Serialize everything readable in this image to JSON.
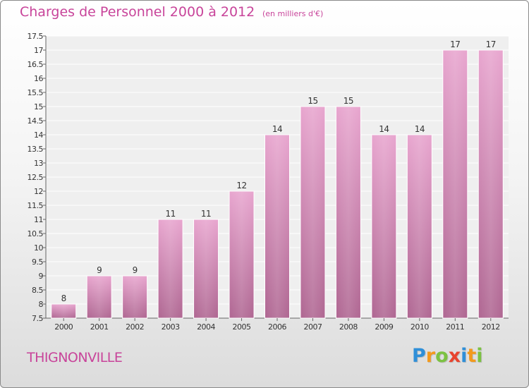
{
  "title": "Charges de Personnel 2000 à 2012",
  "subtitle": "(en milliers d'€)",
  "town": "THIGNONVILLE",
  "logo": {
    "text": "Proxiti",
    "letters": [
      {
        "ch": "P",
        "color": "#2f8fd8"
      },
      {
        "ch": "r",
        "color": "#f39a1d"
      },
      {
        "ch": "o",
        "color": "#7cc242"
      },
      {
        "ch": "x",
        "color": "#e8442e"
      },
      {
        "ch": "i",
        "color": "#2f8fd8"
      },
      {
        "ch": "t",
        "color": "#f39a1d"
      },
      {
        "ch": "i",
        "color": "#7cc242"
      }
    ]
  },
  "colors": {
    "accent": "#c8449a",
    "bar_top": "#e8a6cf",
    "bar_bottom": "#b06893"
  },
  "chart_data": {
    "type": "bar",
    "categories": [
      "2000",
      "2001",
      "2002",
      "2003",
      "2004",
      "2005",
      "2006",
      "2007",
      "2008",
      "2009",
      "2010",
      "2011",
      "2012"
    ],
    "values": [
      8,
      9,
      9,
      11,
      11,
      12,
      14,
      15,
      15,
      14,
      14,
      17,
      17
    ],
    "labels": [
      "8",
      "9",
      "9",
      "11",
      "11",
      "12",
      "14",
      "15",
      "15",
      "14",
      "14",
      "17",
      "17"
    ],
    "ylim": [
      7.5,
      17.5
    ],
    "yticks": [
      7.5,
      8,
      8.5,
      9,
      9.5,
      10,
      10.5,
      11,
      11.5,
      12,
      12.5,
      13,
      13.5,
      14,
      14.5,
      15,
      15.5,
      16,
      16.5,
      17,
      17.5
    ],
    "ytick_labels": [
      "7.5",
      "8",
      "8.5",
      "9",
      "9.5",
      "10",
      "10.5",
      "11",
      "11.5",
      "12",
      "12.5",
      "13",
      "13.5",
      "14",
      "14.5",
      "15",
      "15.5",
      "16",
      "16.5",
      "17",
      "17.5"
    ],
    "grid": true
  }
}
